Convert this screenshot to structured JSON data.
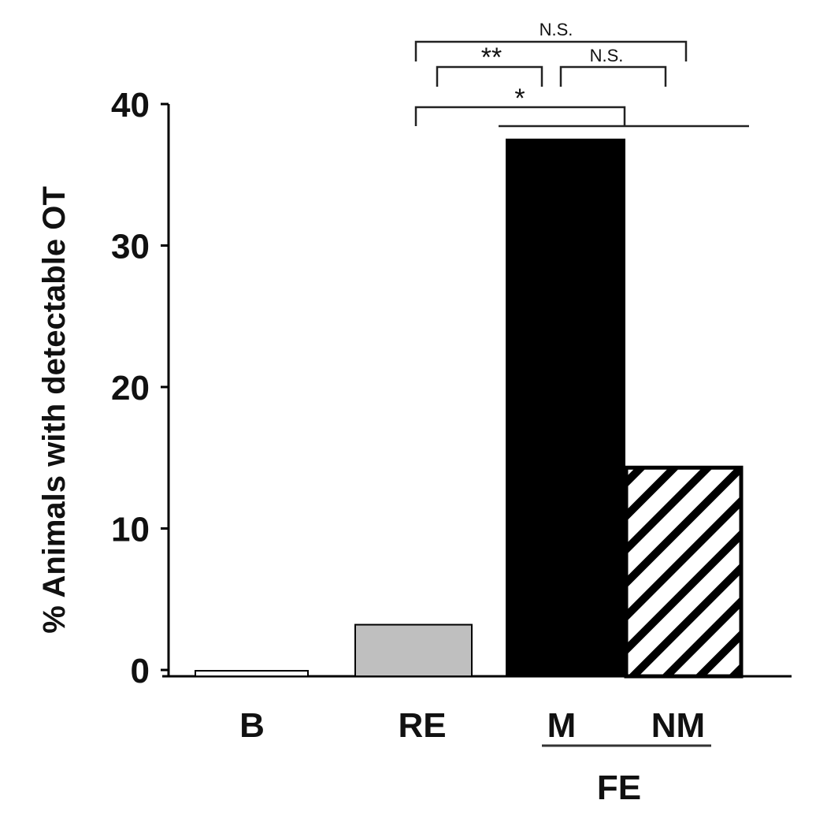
{
  "chart_data": {
    "type": "bar",
    "ylabel": "% Animals with detectable OT",
    "ylim": [
      0,
      40
    ],
    "yticks": [
      0,
      10,
      20,
      30,
      40
    ],
    "categories": [
      "B",
      "RE",
      "M",
      "NM"
    ],
    "values": [
      0,
      3.2,
      37.5,
      14.3
    ],
    "bar_fills": [
      "white",
      "#bfbfbf",
      "#000000",
      "hatched"
    ],
    "group_label": "FE",
    "group_members": [
      "M",
      "NM"
    ],
    "significance": [
      {
        "label": "N.S.",
        "from": "RE",
        "to": "NM"
      },
      {
        "label": "**",
        "from": "RE",
        "to": "M"
      },
      {
        "label": "N.S.",
        "from": "M",
        "to": "NM"
      },
      {
        "label": "*",
        "from": "RE",
        "to": "FE"
      }
    ]
  }
}
